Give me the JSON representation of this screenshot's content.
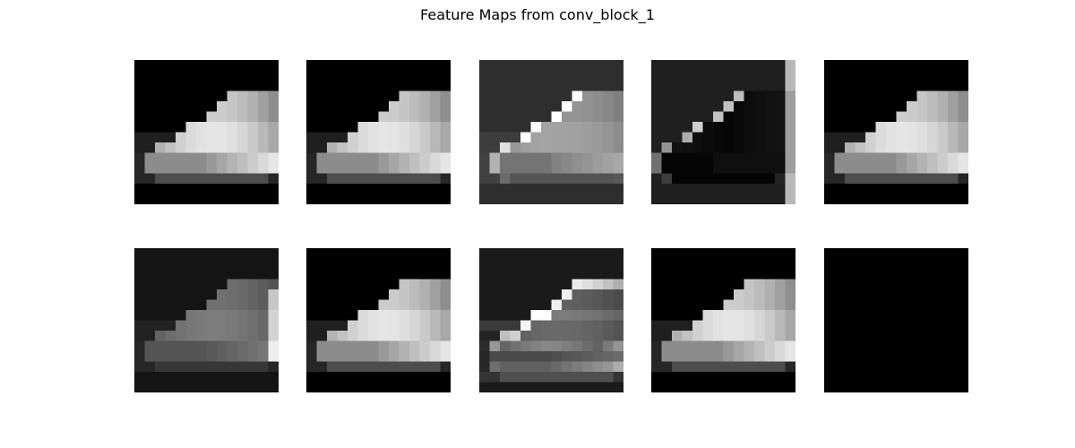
{
  "title": "Feature Maps from conv_block_1",
  "grid": {
    "rows": 2,
    "cols": 5,
    "map_resolution": 14
  },
  "colormap": "gray",
  "panels": [
    {
      "filter": 1,
      "variant": "shoe",
      "background": "#000000"
    },
    {
      "filter": 2,
      "variant": "shoe",
      "background": "#000000"
    },
    {
      "filter": 3,
      "variant": "shoe-edges",
      "background": "#202020"
    },
    {
      "filter": 4,
      "variant": "inverse-edges",
      "background": "#1a1a1a"
    },
    {
      "filter": 5,
      "variant": "shoe",
      "background": "#000000"
    },
    {
      "filter": 6,
      "variant": "dim-shoe",
      "background": "#121212"
    },
    {
      "filter": 7,
      "variant": "shoe",
      "background": "#000000"
    },
    {
      "filter": 8,
      "variant": "shoe-edges-dark",
      "background": "#141414"
    },
    {
      "filter": 9,
      "variant": "shoe",
      "background": "#000000"
    },
    {
      "filter": 10,
      "variant": "blank",
      "background": "#000000"
    }
  ]
}
